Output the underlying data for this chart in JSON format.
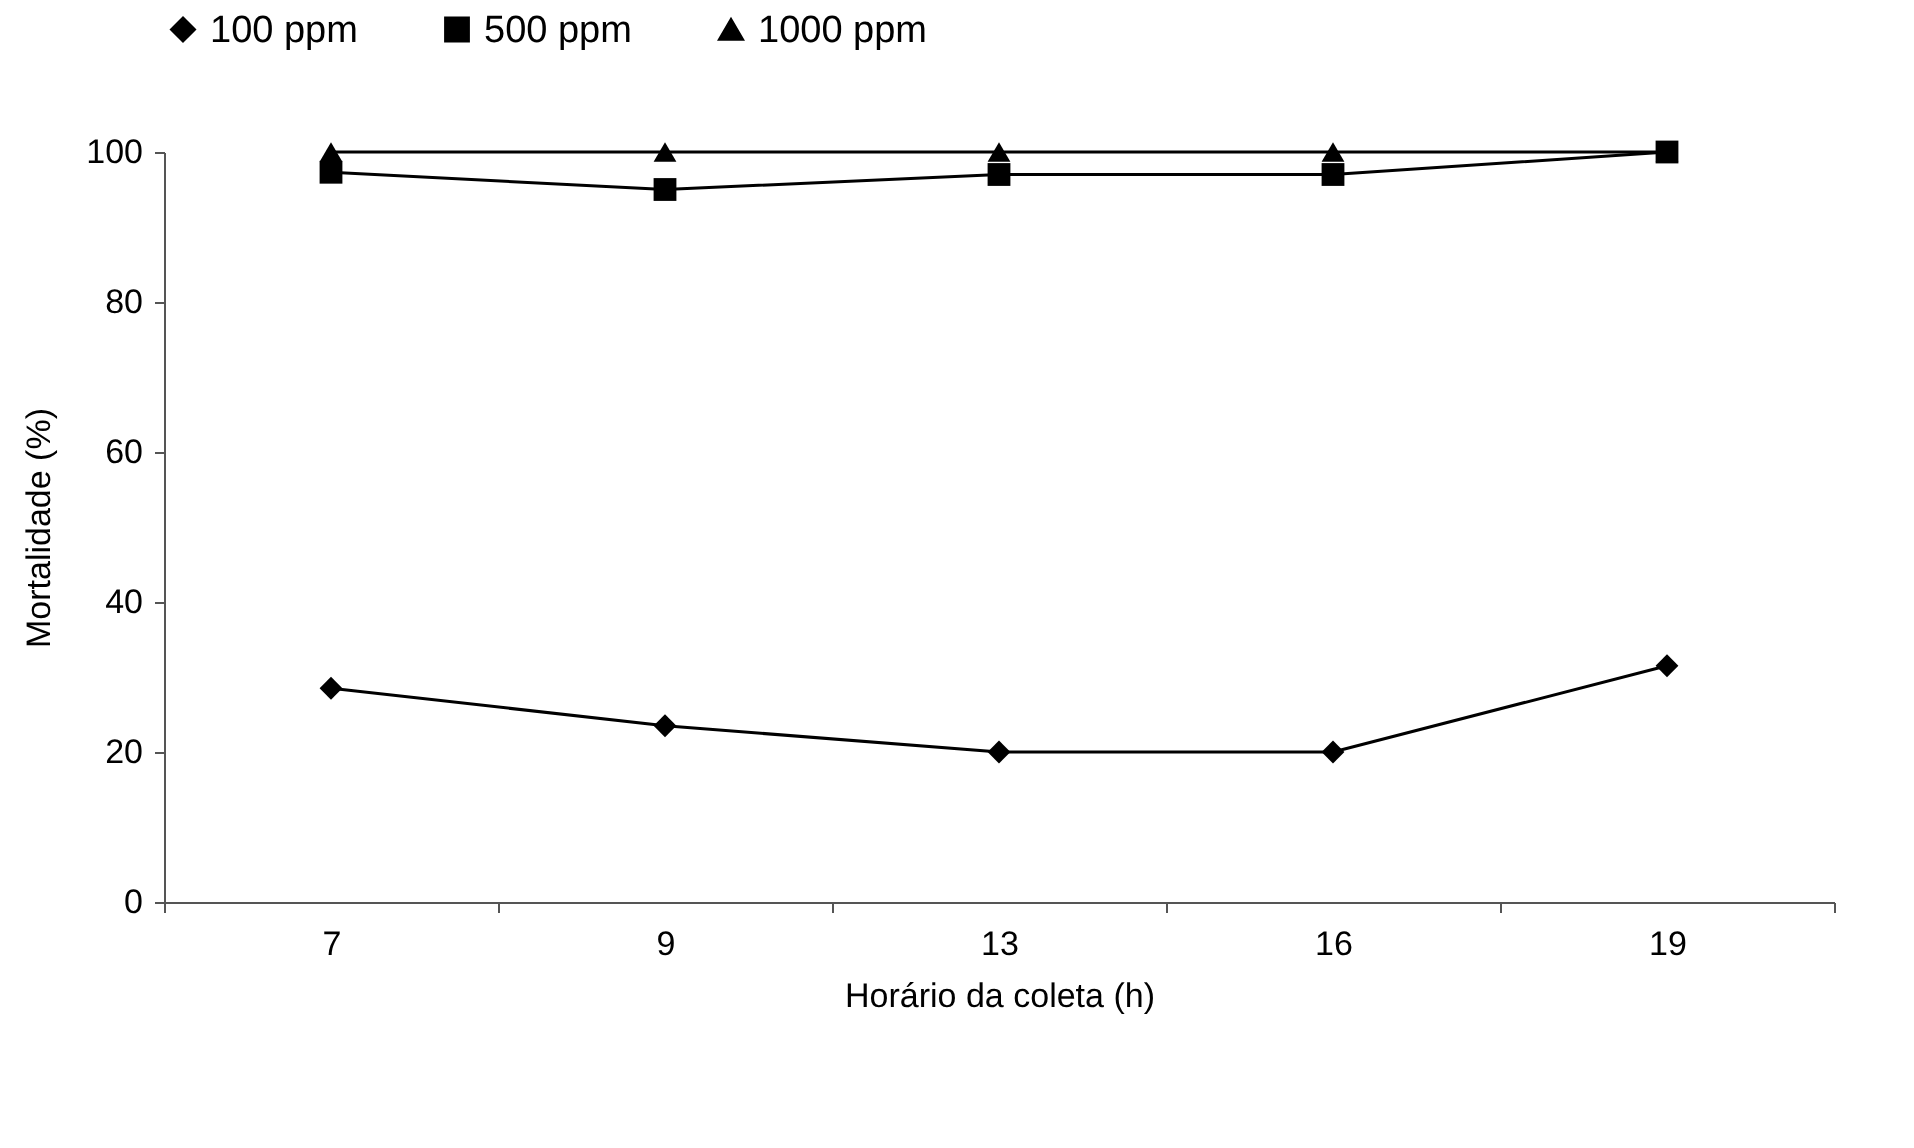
{
  "chart_data": {
    "type": "line",
    "xlabel": "Horário da coleta (h)",
    "ylabel": "Mortalidade (%)",
    "categories": [
      "7",
      "9",
      "13",
      "16",
      "19"
    ],
    "series": [
      {
        "name": "100 ppm",
        "color": "#000000",
        "marker": "diamond",
        "values": [
          28.5,
          23.5,
          20,
          20,
          31.5
        ]
      },
      {
        "name": "500 ppm",
        "color": "#000000",
        "marker": "square",
        "values": [
          97.3,
          95,
          97,
          97,
          100
        ]
      },
      {
        "name": "1000 ppm",
        "color": "#000000",
        "marker": "triangle",
        "values": [
          100,
          100,
          100,
          100,
          100
        ]
      }
    ],
    "ylim": [
      0,
      100
    ],
    "yticks": [
      0,
      20,
      40,
      60,
      80,
      100
    ],
    "grid": false,
    "legend": "top",
    "line_style": "solid"
  }
}
